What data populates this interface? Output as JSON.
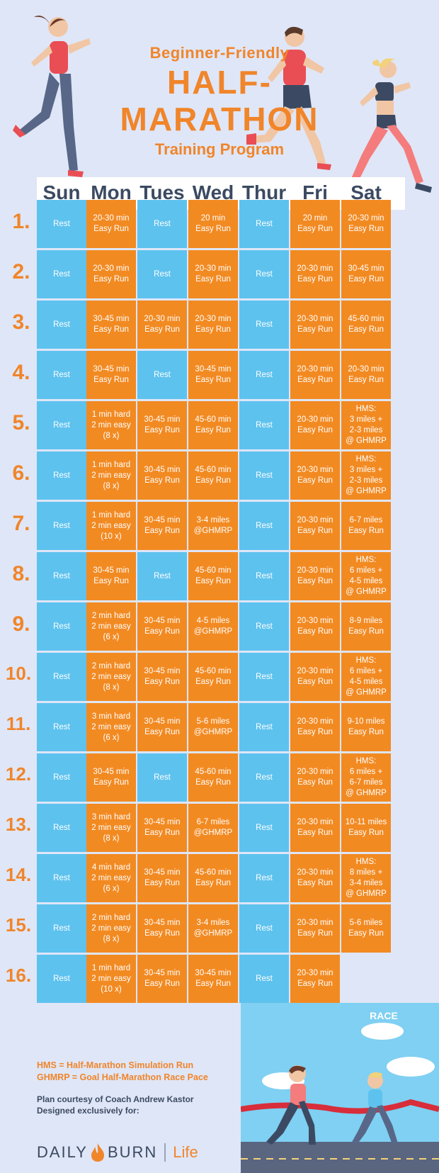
{
  "title": {
    "line1": "Beginner-Friendly",
    "line2": "HALF-MARATHON",
    "line3": "Training Program"
  },
  "days": [
    "Sun",
    "Mon",
    "Tues",
    "Wed",
    "Thur",
    "Fri",
    "Sat"
  ],
  "weeks": [
    {
      "label": "1.",
      "cells": [
        "Rest",
        "20-30 min\nEasy Run",
        "Rest",
        "20 min\nEasy Run",
        "Rest",
        "20 min\nEasy Run",
        "20-30 min\nEasy Run"
      ]
    },
    {
      "label": "2.",
      "cells": [
        "Rest",
        "20-30 min\nEasy Run",
        "Rest",
        "20-30 min\nEasy Run",
        "Rest",
        "20-30 min\nEasy Run",
        "30-45 min\nEasy Run"
      ]
    },
    {
      "label": "3.",
      "cells": [
        "Rest",
        "30-45 min\nEasy Run",
        "20-30 min\nEasy Run",
        "20-30 min\nEasy Run",
        "Rest",
        "20-30 min\nEasy Run",
        "45-60 min\nEasy Run"
      ]
    },
    {
      "label": "4.",
      "cells": [
        "Rest",
        "30-45 min\nEasy Run",
        "Rest",
        "30-45 min\nEasy Run",
        "Rest",
        "20-30 min\nEasy Run",
        "20-30 min\nEasy Run"
      ]
    },
    {
      "label": "5.",
      "cells": [
        "Rest",
        "1 min hard\n2 min easy\n(8 x)",
        "30-45 min\nEasy Run",
        "45-60 min\nEasy Run",
        "Rest",
        "20-30 min\nEasy Run",
        "HMS:\n3 miles +\n2-3 miles\n@ GHMRP"
      ]
    },
    {
      "label": "6.",
      "cells": [
        "Rest",
        "1 min hard\n2 min easy\n(8 x)",
        "30-45 min\nEasy Run",
        "45-60 min\nEasy Run",
        "Rest",
        "20-30 min\nEasy Run",
        "HMS:\n3 miles +\n2-3 miles\n@ GHMRP"
      ]
    },
    {
      "label": "7.",
      "cells": [
        "Rest",
        "1 min hard\n2 min easy\n(10 x)",
        "30-45 min\nEasy Run",
        "3-4 miles\n@GHMRP",
        "Rest",
        "20-30 min\nEasy Run",
        "6-7 miles\nEasy Run"
      ]
    },
    {
      "label": "8.",
      "cells": [
        "Rest",
        "30-45 min\nEasy Run",
        "Rest",
        "45-60 min\nEasy Run",
        "Rest",
        "20-30 min\nEasy Run",
        "HMS:\n6 miles +\n4-5 miles\n@ GHMRP"
      ]
    },
    {
      "label": "9.",
      "cells": [
        "Rest",
        "2 min hard\n2 min easy\n(6 x)",
        "30-45 min\nEasy Run",
        "4-5 miles\n@GHMRP",
        "Rest",
        "20-30 min\nEasy Run",
        "8-9 miles\nEasy Run"
      ]
    },
    {
      "label": "10.",
      "cells": [
        "Rest",
        "2 min hard\n2 min easy\n(8 x)",
        "30-45 min\nEasy Run",
        "45-60 min\nEasy Run",
        "Rest",
        "20-30 min\nEasy Run",
        "HMS:\n6 miles +\n4-5 miles\n@ GHMRP"
      ]
    },
    {
      "label": "11.",
      "cells": [
        "Rest",
        "3 min hard\n2 min easy\n(6 x)",
        "30-45 min\nEasy Run",
        "5-6 miles\n@GHMRP",
        "Rest",
        "20-30 min\nEasy Run",
        "9-10 miles\nEasy Run"
      ]
    },
    {
      "label": "12.",
      "cells": [
        "Rest",
        "30-45 min\nEasy Run",
        "Rest",
        "45-60 min\nEasy Run",
        "Rest",
        "20-30 min\nEasy Run",
        "HMS:\n6 miles +\n6-7 miles\n@ GHMRP"
      ]
    },
    {
      "label": "13.",
      "cells": [
        "Rest",
        "3 min hard\n2 min easy\n(8 x)",
        "30-45 min\nEasy Run",
        "6-7 miles\n@GHMRP",
        "Rest",
        "20-30 min\nEasy Run",
        "10-11 miles\nEasy Run"
      ]
    },
    {
      "label": "14.",
      "cells": [
        "Rest",
        "4 min hard\n2 min easy\n(6 x)",
        "30-45 min\nEasy Run",
        "45-60 min\nEasy Run",
        "Rest",
        "20-30 min\nEasy Run",
        "HMS:\n8 miles +\n3-4 miles\n@ GHMRP"
      ]
    },
    {
      "label": "15.",
      "cells": [
        "Rest",
        "2 min hard\n2 min easy\n(8 x)",
        "30-45 min\nEasy Run",
        "3-4 miles\n@GHMRP",
        "Rest",
        "20-30 min\nEasy Run",
        "5-6 miles\nEasy Run"
      ]
    },
    {
      "label": "16.",
      "cells": [
        "Rest",
        "1 min hard\n2 min easy\n(10 x)",
        "30-45 min\nEasy Run",
        "30-45 min\nEasy Run",
        "Rest",
        "20-30 min\nEasy Run",
        ""
      ]
    }
  ],
  "race_day": "RACE\nDAY!",
  "notes": {
    "hms": "HMS = Half-Marathon Simulation Run",
    "ghmrp": "GHMRP = Goal Half-Marathon Race Pace",
    "credit1": "Plan courtesy of Coach Andrew Kastor",
    "credit2": "Designed exclusively for:"
  },
  "brand": {
    "name_left": "DAILY",
    "name_right": "BURN",
    "suffix": "Life"
  },
  "colors": {
    "rest": "#5ec2ee",
    "run": "#f28a22",
    "accent": "#f0852a",
    "text_dark": "#3b4a62",
    "background": "#dfe6f7"
  }
}
